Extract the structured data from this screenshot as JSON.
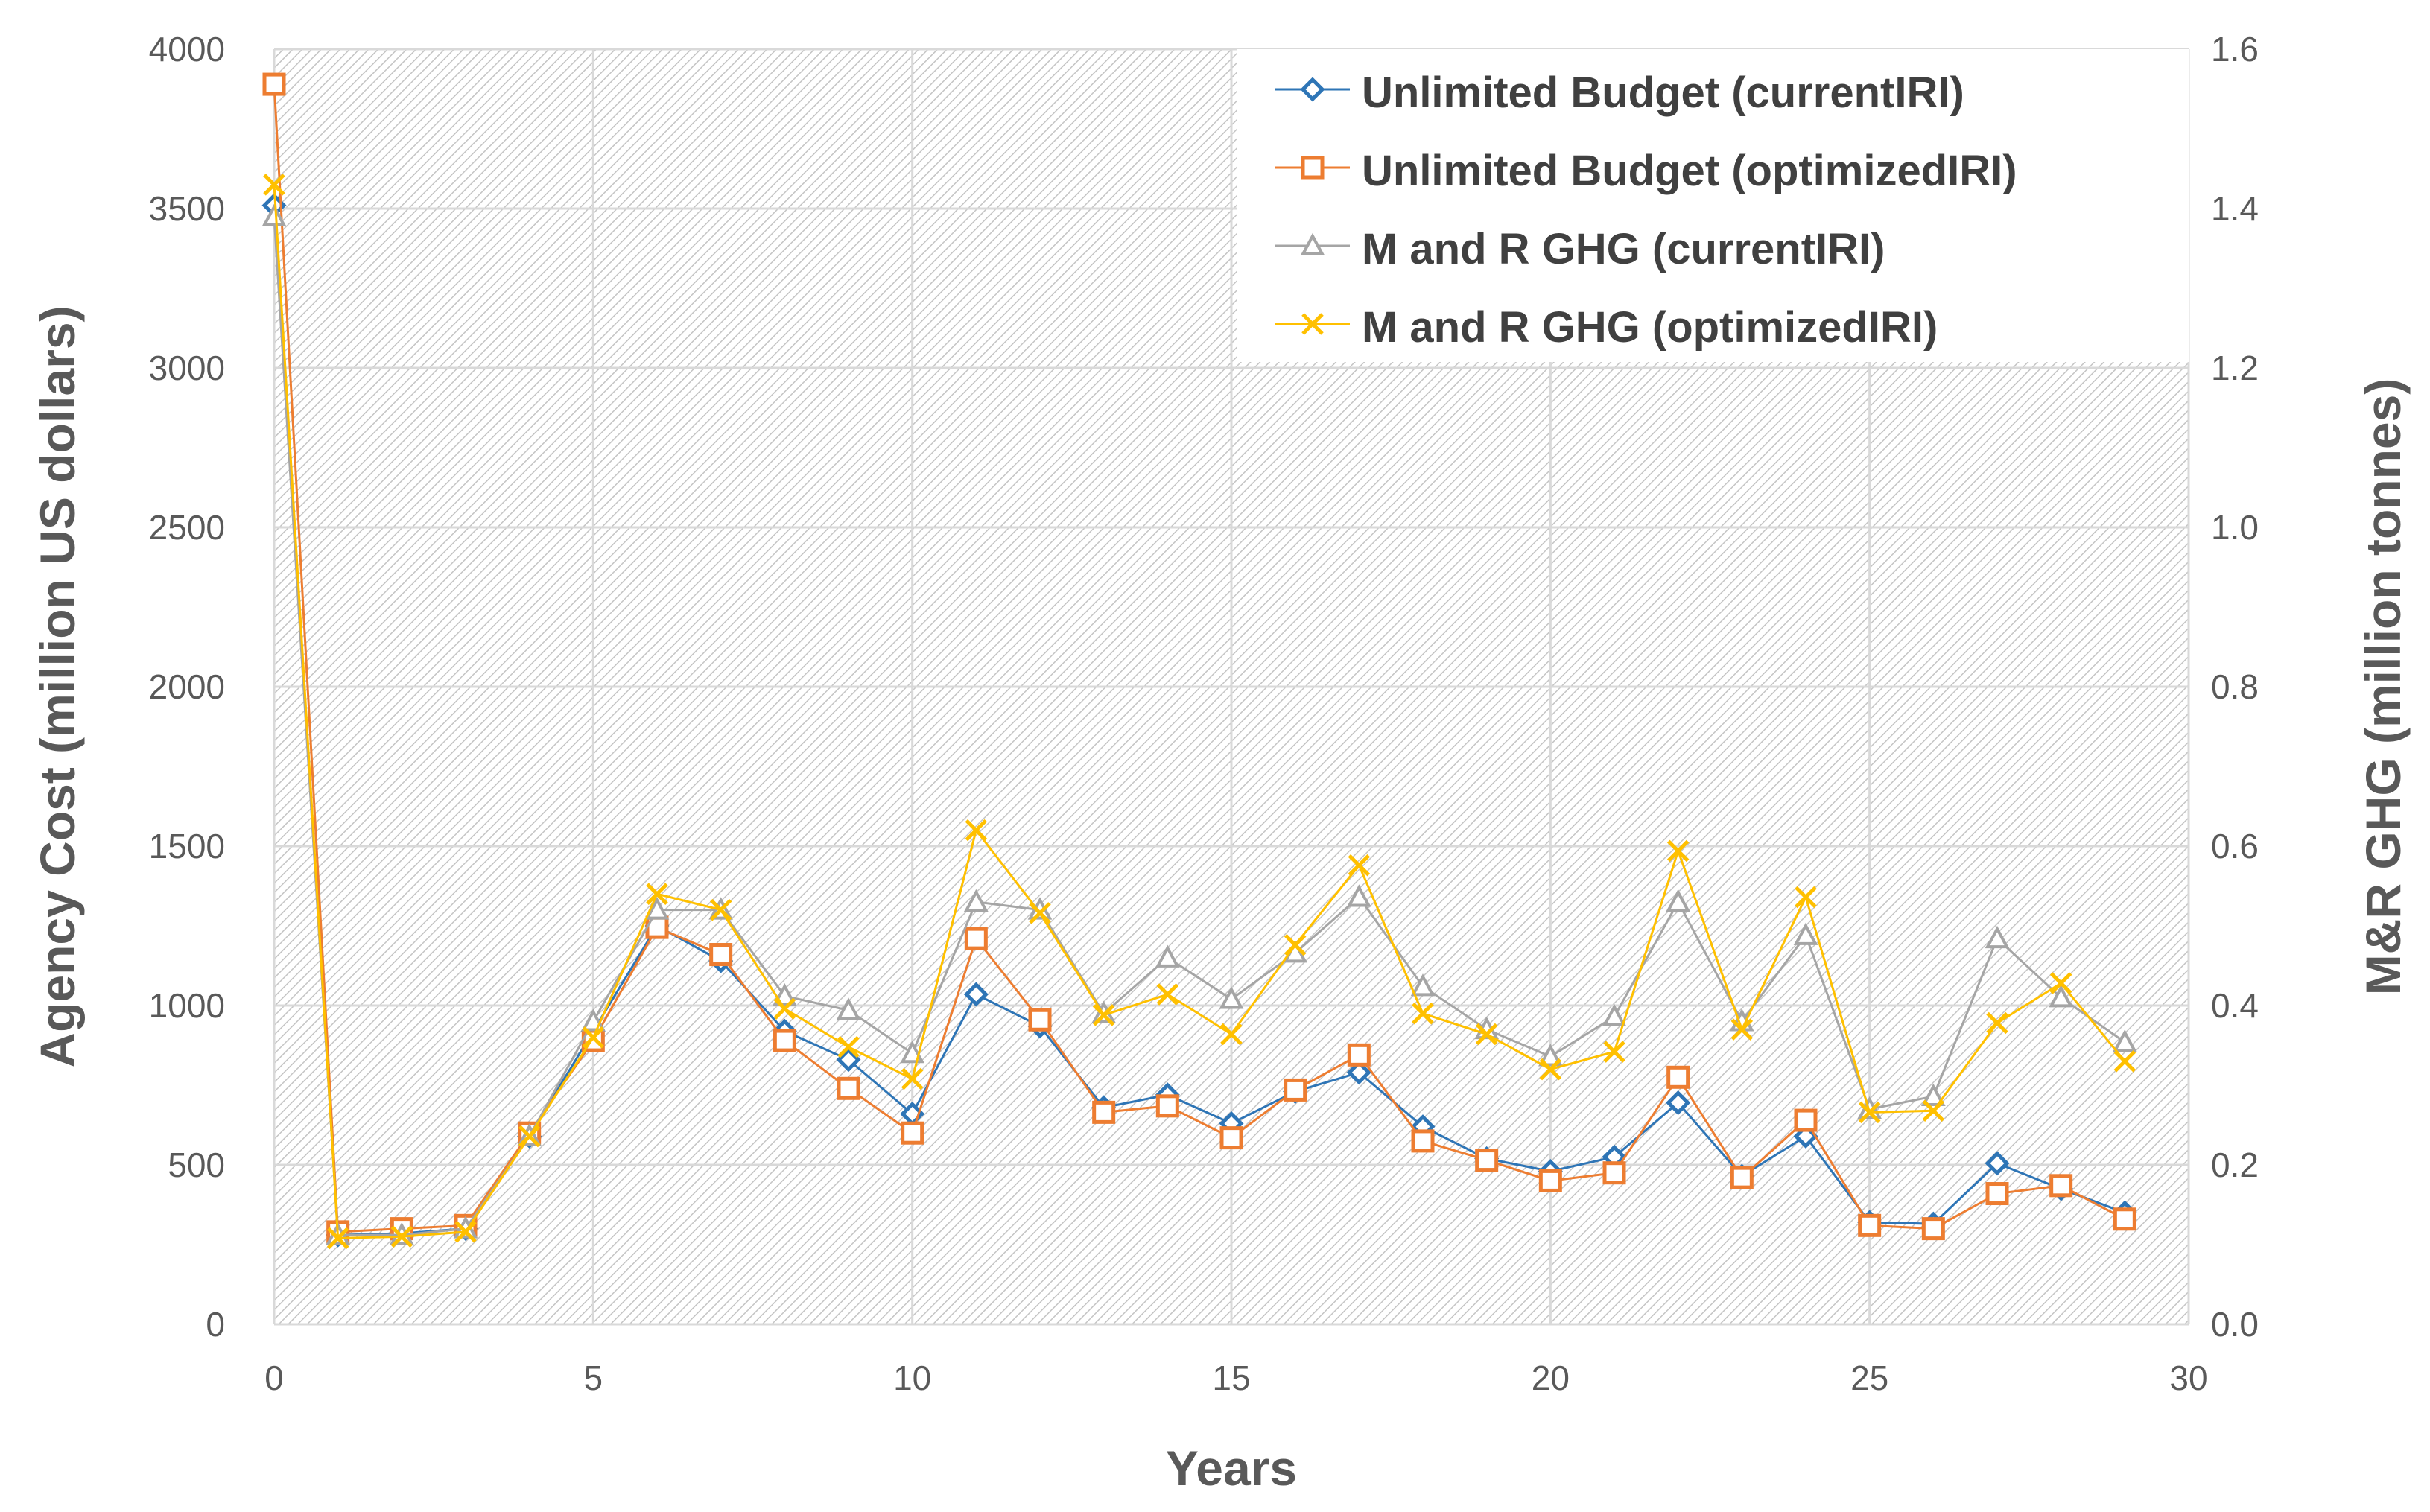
{
  "chart_data": {
    "type": "line",
    "xlabel": "Years",
    "ylabel": "Agency Cost (million US dollars)",
    "y2label": "M&R GHG (million tonnes)",
    "xlim": [
      0,
      30
    ],
    "ylim": [
      0,
      4000
    ],
    "y2lim": [
      0,
      1.6
    ],
    "x_ticks": [
      "0",
      "5",
      "10",
      "15",
      "20",
      "25",
      "30"
    ],
    "y_ticks": [
      "0",
      "500",
      "1000",
      "1500",
      "2000",
      "2500",
      "3000",
      "3500",
      "4000"
    ],
    "y2_ticks": [
      "0.0",
      "0.2",
      "0.4",
      "0.6",
      "0.8",
      "1.0",
      "1.2",
      "1.4",
      "1.6"
    ],
    "grid": true,
    "legend_position": "top-right",
    "x": [
      0,
      1,
      2,
      3,
      4,
      5,
      6,
      7,
      8,
      9,
      10,
      11,
      12,
      13,
      14,
      15,
      16,
      17,
      18,
      19,
      20,
      21,
      22,
      23,
      24,
      25,
      26,
      27,
      28,
      29
    ],
    "series": [
      {
        "name": "Unlimited Budget (currentIRI)",
        "axis": "left",
        "marker": "diamond",
        "color": "#2E75B6",
        "values": [
          3510,
          280,
          285,
          300,
          590,
          920,
          1250,
          1140,
          920,
          830,
          660,
          1035,
          935,
          680,
          720,
          630,
          730,
          790,
          620,
          520,
          480,
          525,
          695,
          465,
          590,
          320,
          315,
          505,
          425,
          350
        ]
      },
      {
        "name": "Unlimited Budget (optimizedIRI)",
        "axis": "left",
        "marker": "square",
        "color": "#ED7D31",
        "values": [
          3890,
          290,
          300,
          310,
          600,
          890,
          1245,
          1160,
          890,
          740,
          600,
          1210,
          955,
          665,
          685,
          585,
          735,
          845,
          575,
          515,
          450,
          475,
          775,
          460,
          640,
          310,
          300,
          410,
          435,
          330
        ]
      },
      {
        "name": "M and R GHG (currentIRI)",
        "axis": "right",
        "marker": "triangle",
        "color": "#A5A5A5",
        "values": [
          1.39,
          0.112,
          0.112,
          0.12,
          0.236,
          0.38,
          0.52,
          0.52,
          0.412,
          0.394,
          0.34,
          0.53,
          0.52,
          0.39,
          0.46,
          0.408,
          0.466,
          0.536,
          0.424,
          0.37,
          0.336,
          0.386,
          0.53,
          0.38,
          0.488,
          0.27,
          0.286,
          0.484,
          0.41,
          0.354
        ]
      },
      {
        "name": "M and R GHG (optimizedIRI)",
        "axis": "right",
        "marker": "x",
        "color": "#FFC000",
        "values": [
          1.43,
          0.108,
          0.11,
          0.116,
          0.236,
          0.36,
          0.54,
          0.52,
          0.396,
          0.348,
          0.308,
          0.62,
          0.516,
          0.388,
          0.414,
          0.364,
          0.476,
          0.576,
          0.39,
          0.364,
          0.32,
          0.342,
          0.594,
          0.37,
          0.536,
          0.266,
          0.268,
          0.378,
          0.428,
          0.33
        ]
      }
    ]
  }
}
